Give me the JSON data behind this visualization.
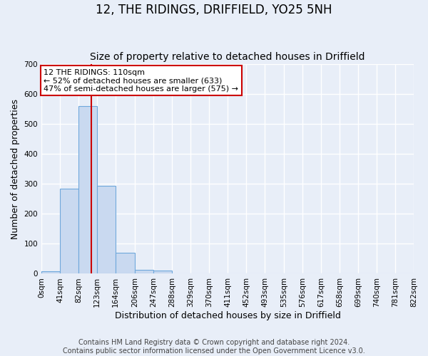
{
  "title": "12, THE RIDINGS, DRIFFIELD, YO25 5NH",
  "subtitle": "Size of property relative to detached houses in Driffield",
  "xlabel": "Distribution of detached houses by size in Driffield",
  "ylabel": "Number of detached properties",
  "footer_line1": "Contains HM Land Registry data © Crown copyright and database right 2024.",
  "footer_line2": "Contains public sector information licensed under the Open Government Licence v3.0.",
  "bin_edges": [
    0,
    41,
    82,
    123,
    164,
    206,
    247,
    288,
    329,
    370,
    411,
    452,
    493,
    535,
    576,
    617,
    658,
    699,
    740,
    781,
    822
  ],
  "bar_heights": [
    8,
    284,
    560,
    293,
    70,
    14,
    10,
    0,
    0,
    0,
    0,
    0,
    0,
    0,
    0,
    0,
    0,
    0,
    0,
    0
  ],
  "bar_color": "#c9d9f0",
  "bar_edge_color": "#6fa8dc",
  "vline_x": 110,
  "vline_color": "#cc0000",
  "annotation_text": "12 THE RIDINGS: 110sqm\n← 52% of detached houses are smaller (633)\n47% of semi-detached houses are larger (575) →",
  "annotation_box_color": "#ffffff",
  "annotation_box_edge_color": "#cc0000",
  "ylim": [
    0,
    700
  ],
  "yticks": [
    0,
    100,
    200,
    300,
    400,
    500,
    600,
    700
  ],
  "tick_labels": [
    "0sqm",
    "41sqm",
    "82sqm",
    "123sqm",
    "164sqm",
    "206sqm",
    "247sqm",
    "288sqm",
    "329sqm",
    "370sqm",
    "411sqm",
    "452sqm",
    "493sqm",
    "535sqm",
    "576sqm",
    "617sqm",
    "658sqm",
    "699sqm",
    "740sqm",
    "781sqm",
    "822sqm"
  ],
  "background_color": "#e8eef8",
  "grid_color": "#ffffff",
  "title_fontsize": 12,
  "subtitle_fontsize": 10,
  "axis_label_fontsize": 9,
  "tick_fontsize": 7.5,
  "annotation_fontsize": 8,
  "footer_fontsize": 7
}
